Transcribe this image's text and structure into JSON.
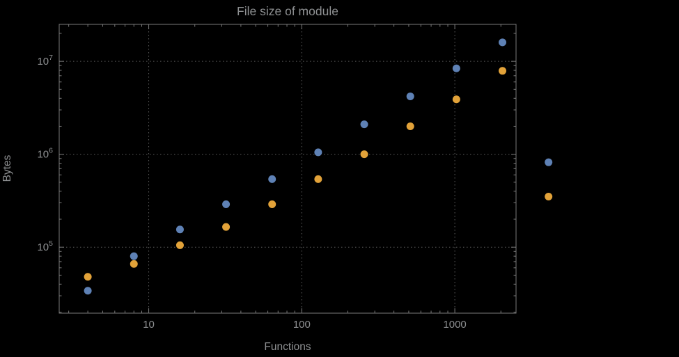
{
  "chart_data": {
    "type": "scatter",
    "title": "File size of module",
    "xlabel": "Functions",
    "ylabel": "Bytes",
    "x_scale": "log",
    "y_scale": "log",
    "xlim": [
      2.6,
      2512
    ],
    "ylim": [
      19500,
      25000000
    ],
    "grid": "dotted",
    "legend": "none",
    "x_ticks": [
      10,
      100,
      1000
    ],
    "x_tick_labels": [
      "10",
      "100",
      "1000"
    ],
    "y_ticks": [
      100000,
      1000000,
      10000000
    ],
    "y_tick_labels": [
      "10^5",
      "10^6",
      "10^7"
    ],
    "colors": {
      "background": "#000000",
      "frame": "#7a7a7a",
      "grid": "#5e5e5e",
      "text": "#8e9092"
    },
    "x": [
      4,
      8,
      16,
      32,
      64,
      128,
      256,
      512,
      1024,
      2048,
      4096
    ],
    "series": [
      {
        "name": "series-blue",
        "color": "#5e81b5",
        "values": [
          34000,
          80000,
          155000,
          290000,
          540000,
          1050000,
          2100000,
          4200000,
          8400000,
          16000000,
          820000
        ]
      },
      {
        "name": "series-orange",
        "color": "#e2a239",
        "values": [
          48000,
          66000,
          105000,
          165000,
          290000,
          540000,
          1000000,
          2000000,
          3900000,
          7900000,
          350000
        ]
      }
    ]
  }
}
